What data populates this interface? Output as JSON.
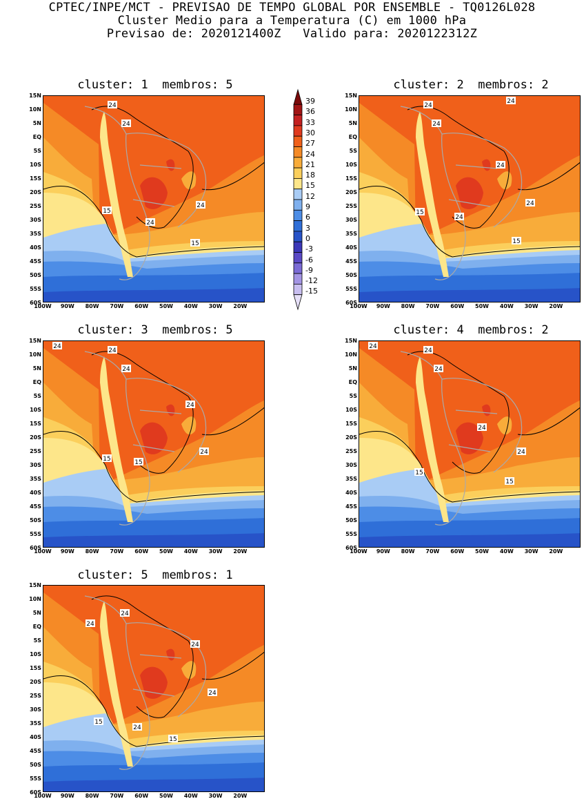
{
  "header": {
    "line1": "CPTEC/INPE/MCT - PREVISAO DE TEMPO GLOBAL POR ENSEMBLE - TQ0126L028",
    "line2": "Cluster Medio para a Temperatura (C) em 1000 hPa",
    "line3": "Previsao de: 2020121400Z   Valido para: 2020122312Z"
  },
  "panels": [
    {
      "title": "cluster: 1  membros: 5",
      "contour_labels": [
        "24",
        "24",
        "24",
        "24",
        "15",
        "15"
      ]
    },
    {
      "title": "cluster: 2  membros: 2",
      "contour_labels": [
        "24",
        "24",
        "24",
        "24",
        "24",
        "24",
        "15",
        "15"
      ]
    },
    {
      "title": "cluster: 3  membros: 5",
      "contour_labels": [
        "24",
        "24",
        "24",
        "24",
        "24",
        "15",
        "15"
      ]
    },
    {
      "title": "cluster: 4  membros: 2",
      "contour_labels": [
        "24",
        "24",
        "24",
        "24",
        "24",
        "15",
        "15"
      ]
    },
    {
      "title": "cluster: 5  membros: 1",
      "contour_labels": [
        "24",
        "24",
        "24",
        "24",
        "24",
        "15",
        "15"
      ]
    }
  ],
  "lat_labels": [
    "15N",
    "10N",
    "5N",
    "EQ",
    "5S",
    "10S",
    "15S",
    "20S",
    "25S",
    "30S",
    "35S",
    "40S",
    "45S",
    "50S",
    "55S",
    "60S"
  ],
  "lon_labels": [
    "100W",
    "90W",
    "80W",
    "70W",
    "60W",
    "50W",
    "40W",
    "30W",
    "20W"
  ],
  "colorbar": {
    "labels": [
      "39",
      "36",
      "33",
      "30",
      "27",
      "24",
      "21",
      "18",
      "15",
      "12",
      "9",
      "6",
      "3",
      "0",
      "-3",
      "-6",
      "-9",
      "-12",
      "-15"
    ],
    "colors": [
      "#7a0a0a",
      "#a11414",
      "#c42020",
      "#e03a1e",
      "#f0601a",
      "#f58a26",
      "#f8ac3a",
      "#fbcf5c",
      "#fde68a",
      "#a9ccf5",
      "#7fb0ee",
      "#4d8de6",
      "#2f6fd8",
      "#2753c8",
      "#3b37b8",
      "#5a49c6",
      "#7b6bd6",
      "#a394e4",
      "#c8bef0",
      "#e6e0f8"
    ]
  }
}
